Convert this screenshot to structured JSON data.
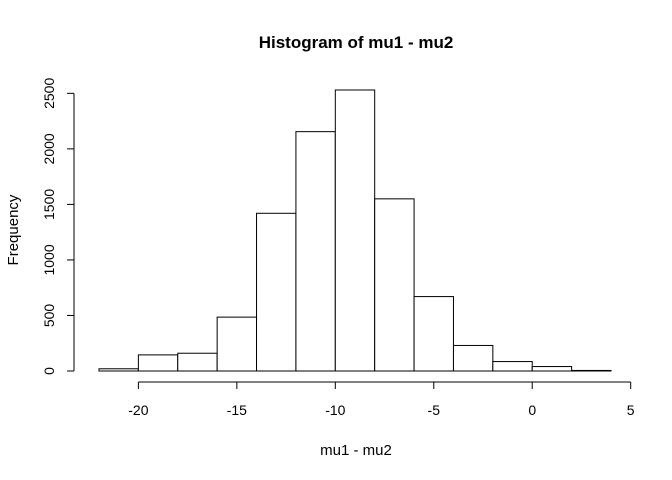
{
  "chart_data": {
    "type": "bar",
    "title": "Histogram of mu1 - mu2",
    "xlabel": "mu1 - mu2",
    "ylabel": "Frequency",
    "bin_edges": [
      -22,
      -20,
      -18,
      -16,
      -14,
      -12,
      -10,
      -8,
      -6,
      -4,
      -2,
      0,
      2,
      4
    ],
    "values": [
      20,
      145,
      160,
      485,
      1420,
      2155,
      2530,
      1550,
      670,
      230,
      85,
      40,
      5
    ],
    "xlim": [
      -22,
      4
    ],
    "ylim": [
      0,
      2530
    ],
    "x_ticks": [
      -20,
      -15,
      -10,
      -5,
      0,
      5
    ],
    "x_tick_labels": [
      "-20",
      "-15",
      "-10",
      "-5",
      "0",
      "5"
    ],
    "y_ticks": [
      0,
      500,
      1000,
      1500,
      2000,
      2500
    ],
    "y_tick_labels": [
      "0",
      "500",
      "1000",
      "1500",
      "2000",
      "2500"
    ],
    "grid": false,
    "bar_fill": "#ffffff",
    "bar_stroke": "#000000"
  }
}
